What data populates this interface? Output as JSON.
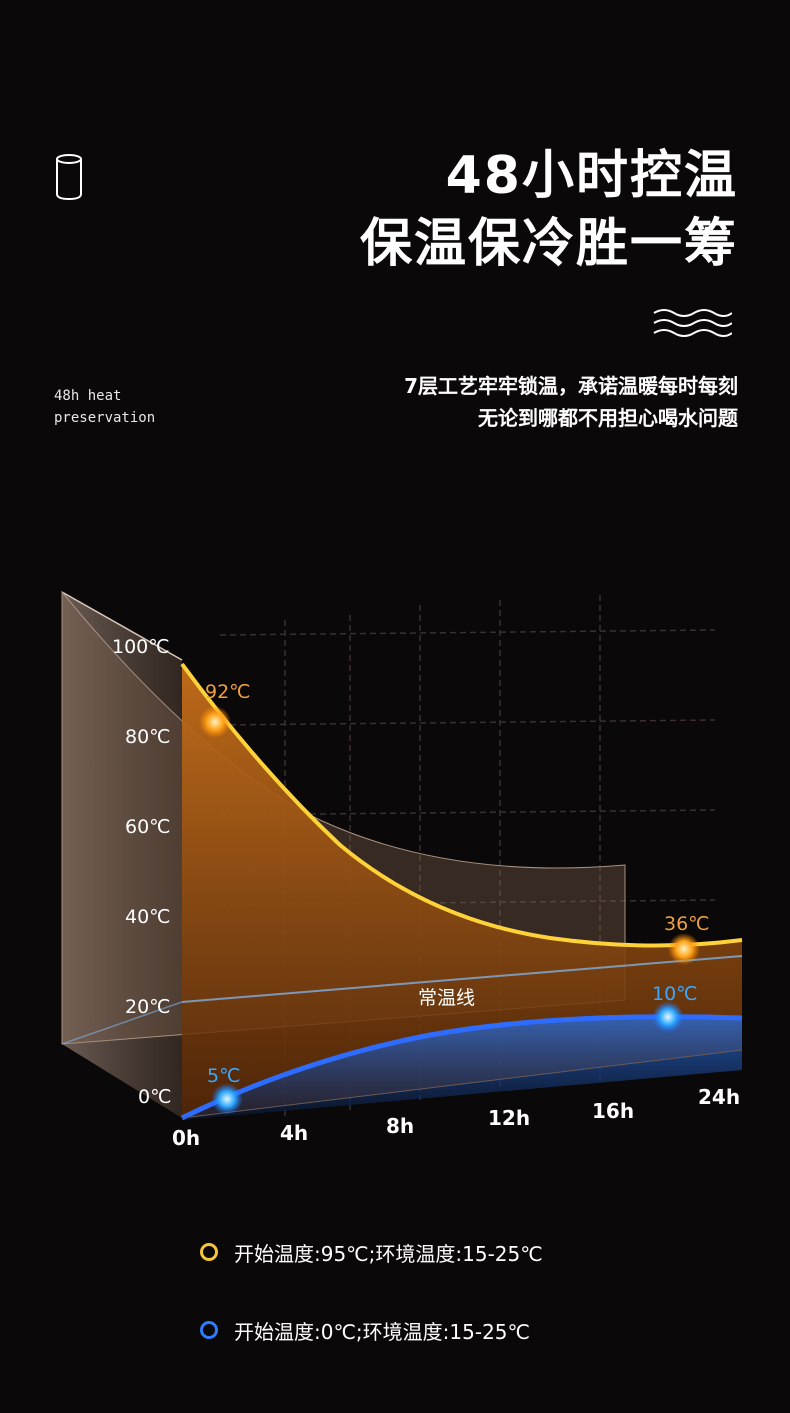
{
  "header": {
    "icon": "cup-icon",
    "title_line1": "48小时控温",
    "title_line2": "保温保冷胜一筹",
    "decor_icon": "wave-icon",
    "en_label": "48h heat\npreservation",
    "desc_line1": "7层工艺牢牢锁温，承诺温暖每时每刻",
    "desc_line2": "无论到哪都不用担心喝水问题"
  },
  "chart_data": {
    "type": "area",
    "x_ticks": [
      "0h",
      "4h",
      "8h",
      "12h",
      "16h",
      "24h"
    ],
    "y_ticks": [
      "0℃",
      "20℃",
      "40℃",
      "60℃",
      "80℃",
      "100℃"
    ],
    "ylim": [
      0,
      100
    ],
    "reference_line": {
      "label": "常温线",
      "value": 20
    },
    "series": [
      {
        "color": "#f5c63a",
        "start_label": "92℃",
        "end_label": "36℃",
        "points": [
          [
            0,
            92
          ],
          [
            24,
            36
          ]
        ]
      },
      {
        "color": "#2f7bff",
        "start_label": "5℃",
        "end_label": "10℃",
        "points": [
          [
            0,
            5
          ],
          [
            24,
            10
          ]
        ]
      }
    ],
    "legend": [
      {
        "color": "#f5c63a",
        "text": "开始温度:95℃;环境温度:15-25℃"
      },
      {
        "color": "#2f7bff",
        "text": "开始温度:0℃;环境温度:15-25℃"
      }
    ]
  }
}
